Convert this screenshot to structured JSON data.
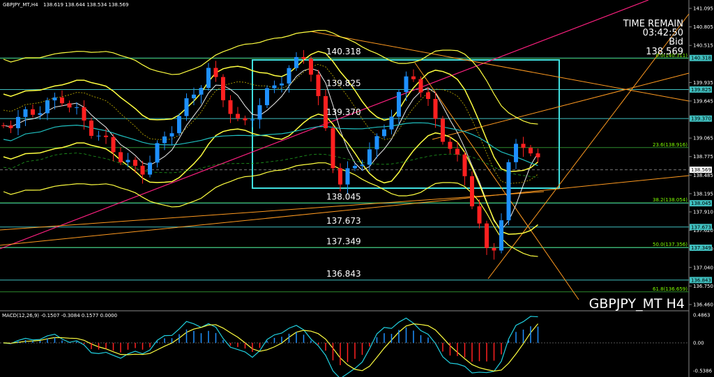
{
  "header": {
    "symbol": "GBPJPY_MT,H4",
    "quote": "138.619 138.644 138.534 138.569"
  },
  "timer": {
    "title": "TIME REMAIN",
    "time": "03:42:50",
    "side": "Bid",
    "price": "138.569"
  },
  "footer": {
    "chart_name": "GBPJPY_MT H4"
  },
  "price_axis": [
    "141.095",
    "140.805",
    "140.515",
    "139.935",
    "139.645",
    "139.065",
    "138.775",
    "138.485",
    "138.195",
    "137.910",
    "137.620",
    "137.330",
    "137.040",
    "136.750",
    "136.460"
  ],
  "levels": [
    "140.318",
    "139.825",
    "139.370",
    "138.045",
    "137.673",
    "137.349",
    "136.843"
  ],
  "fib": [
    {
      "label": "0.0(140.311)",
      "price": "140.311"
    },
    {
      "label": "23.6(138.916)",
      "price": "138.916"
    },
    {
      "label": "38.2(138.054)",
      "price": "138.054"
    },
    {
      "label": "50.0(137.356)",
      "price": "137.356"
    },
    {
      "label": "61.8(136.659)",
      "price": "136.659"
    }
  ],
  "current_price": "138.569",
  "macd": {
    "label": "MACD(12,26,9) -0.1507 -0.3084 0.1577 0.0000",
    "axis": [
      "0.4863",
      "0.00",
      "-0.5386"
    ]
  }
}
